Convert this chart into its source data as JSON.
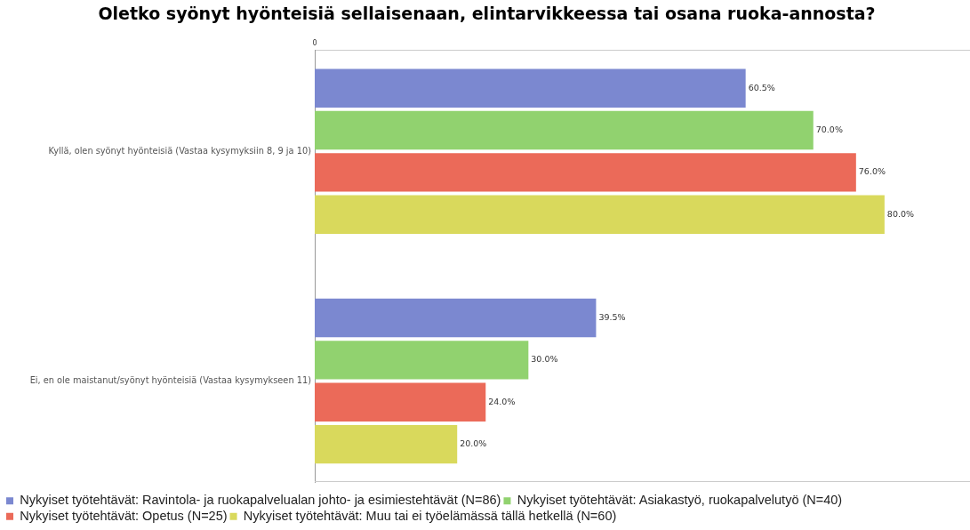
{
  "chart_data": {
    "type": "bar",
    "orientation": "horizontal",
    "title": "Oletko syönyt hyönteisiä sellaisenaan, elintarvikkeessa tai osana ruoka-annosta?",
    "categories": [
      "Kyllä, olen syönyt hyönteisiä (Vastaa kysymyksiin 8, 9 ja 10)",
      "Ei, en ole maistanut/syönyt hyönteisiä (Vastaa kysymykseen 11)"
    ],
    "series": [
      {
        "name": "Nykyiset työtehtävät: Ravintola- ja ruokapalvelualan johto- ja esimiestehtävät (N=86)",
        "color": "#7b88d0",
        "values": [
          60.5,
          39.5
        ],
        "value_labels": [
          "60.5%",
          "39.5%"
        ]
      },
      {
        "name": "Nykyiset työtehtävät: Asiakastyö, ruokapalvelutyö (N=40)",
        "color": "#91d26f",
        "values": [
          70.0,
          30.0
        ],
        "value_labels": [
          "70.0%",
          "30.0%"
        ]
      },
      {
        "name": "Nykyiset työtehtävät: Opetus (N=25)",
        "color": "#eb6a59",
        "values": [
          76.0,
          24.0
        ],
        "value_labels": [
          "76.0%",
          "24.0%"
        ]
      },
      {
        "name": "Nykyiset työtehtävät: Muu tai ei työelämässä tällä hetkellä (N=60)",
        "color": "#d9d95c",
        "values": [
          80.0,
          20.0
        ],
        "value_labels": [
          "80.0%",
          "20.0%"
        ]
      }
    ],
    "xlim": [
      0,
      92
    ],
    "tick_labels": "y",
    "annotations": [
      "0"
    ],
    "legend": "bottom"
  }
}
